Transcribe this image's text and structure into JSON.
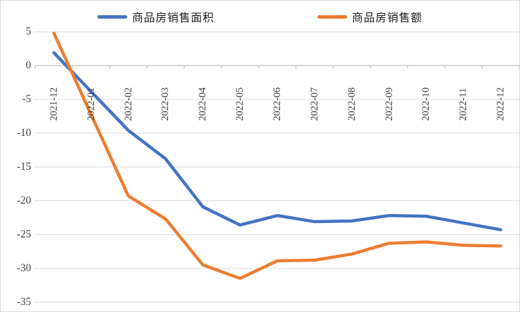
{
  "chart_data": {
    "type": "line",
    "title": "",
    "xlabel": "",
    "ylabel": "",
    "grid": true,
    "legend_position": "top",
    "ylim": [
      -35,
      5
    ],
    "yticks": [
      5,
      0,
      -5,
      -10,
      -15,
      -20,
      -25,
      -30,
      -35
    ],
    "categories": [
      "2021-12",
      "2022-01",
      "2022-02",
      "2022-03",
      "2022-04",
      "2022-05",
      "2022-06",
      "2022-07",
      "2022-08",
      "2022-09",
      "2022-10",
      "2022-11",
      "2022-12"
    ],
    "series": [
      {
        "name": "商品房销售面积",
        "color": "#4472C4",
        "values": [
          1.9,
          null,
          -9.6,
          -13.8,
          -20.9,
          -23.6,
          -22.2,
          -23.1,
          -23.0,
          -22.2,
          -22.3,
          -23.3,
          -24.3
        ]
      },
      {
        "name": "商品房销售额",
        "color": "#ED7D31",
        "values": [
          4.8,
          null,
          -19.3,
          -22.7,
          -29.5,
          -31.5,
          -28.9,
          -28.8,
          -27.9,
          -26.3,
          -26.1,
          -26.6,
          -26.7
        ]
      }
    ]
  },
  "legend": {
    "items": [
      {
        "label": "商品房销售面积",
        "color": "#4472C4"
      },
      {
        "label": "商品房销售额",
        "color": "#ED7D31"
      }
    ]
  },
  "colors": {
    "grid": "#D9D9D9",
    "axis": "#BFBFBF",
    "tick_label": "#404040",
    "background": "#FFFFFF",
    "border": "#D9D9D9"
  }
}
